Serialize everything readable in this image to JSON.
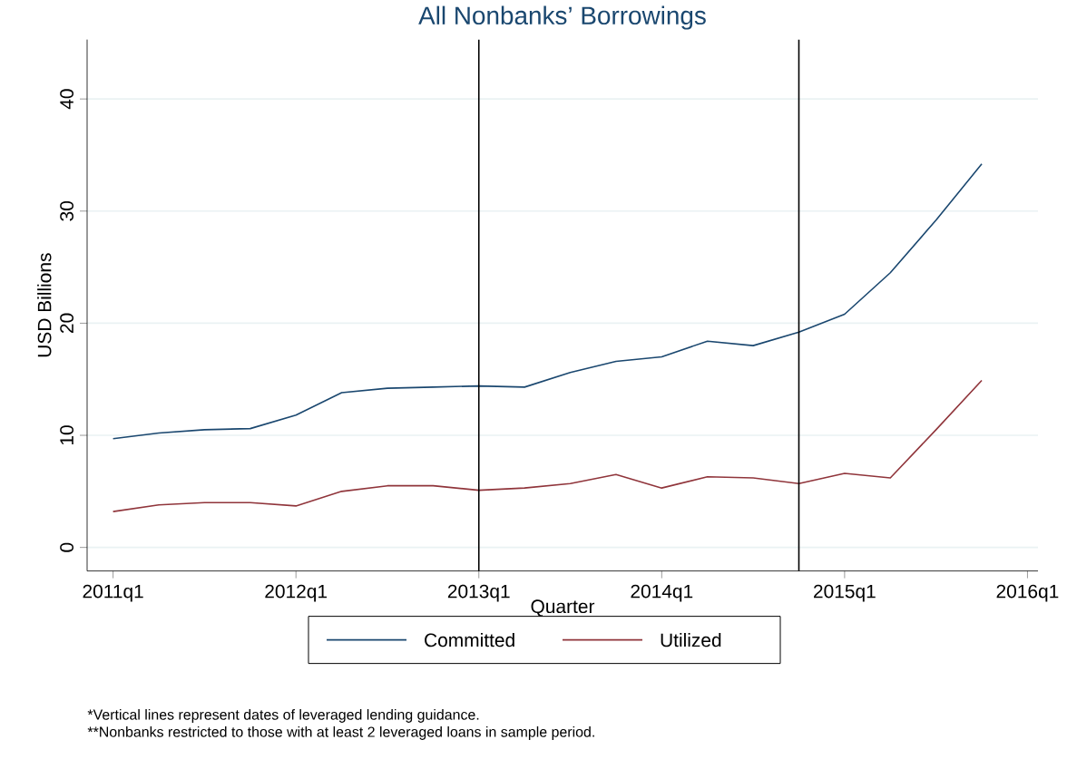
{
  "chart_data": {
    "type": "line",
    "title": "All Nonbanks’ Borrowings",
    "xlabel": "Quarter",
    "ylabel": "USD Billions",
    "x": [
      "2011-01",
      "2011-04",
      "2011-07",
      "2011-10",
      "2012-01",
      "2012-04",
      "2012-07",
      "2012-10",
      "2013-01",
      "2013-04",
      "2013-07",
      "2013-10",
      "2014-01",
      "2014-04",
      "2014-07",
      "2014-10",
      "2015-01",
      "2015-04",
      "2015-07",
      "2015-10"
    ],
    "series": [
      {
        "name": "Committed",
        "color": "#1a476f",
        "values": [
          9.7,
          10.2,
          10.5,
          10.6,
          11.8,
          13.8,
          14.2,
          14.3,
          14.4,
          14.3,
          15.6,
          16.6,
          17.0,
          18.4,
          18.0,
          19.2,
          20.8,
          24.5,
          29.2,
          34.2
        ]
      },
      {
        "name": "Utilized",
        "color": "#90353b",
        "values": [
          3.2,
          3.8,
          4.0,
          4.0,
          3.7,
          5.0,
          5.5,
          5.5,
          5.1,
          5.3,
          5.7,
          6.5,
          5.3,
          6.3,
          6.2,
          5.7,
          6.6,
          6.2,
          10.5,
          14.9
        ]
      }
    ],
    "xlim": [
      "2010-11-10",
      "2016-01-22"
    ],
    "ylim": [
      -2.1,
      45.3
    ],
    "xticks": [
      {
        "value": "2011-01",
        "label": "2011q1"
      },
      {
        "value": "2012-01",
        "label": "2012q1"
      },
      {
        "value": "2013-01",
        "label": "2013q1"
      },
      {
        "value": "2014-01",
        "label": "2014q1"
      },
      {
        "value": "2015-01",
        "label": "2015q1"
      },
      {
        "value": "2016-01",
        "label": "2016q1"
      }
    ],
    "yticks": [
      0,
      10,
      20,
      30,
      40
    ],
    "grid": "y",
    "legend": "bottom",
    "line_style": "solid",
    "marker": "none",
    "ref_lines": [
      {
        "axis": "x",
        "value": "2013-01",
        "color": "#000000"
      },
      {
        "axis": "x",
        "value": "2014-10",
        "color": "#000000"
      }
    ],
    "annotations": [
      "*Vertical lines represent dates of leveraged lending guidance.",
      "**Nonbanks restricted to those with at least 2 leveraged loans in sample period."
    ]
  }
}
